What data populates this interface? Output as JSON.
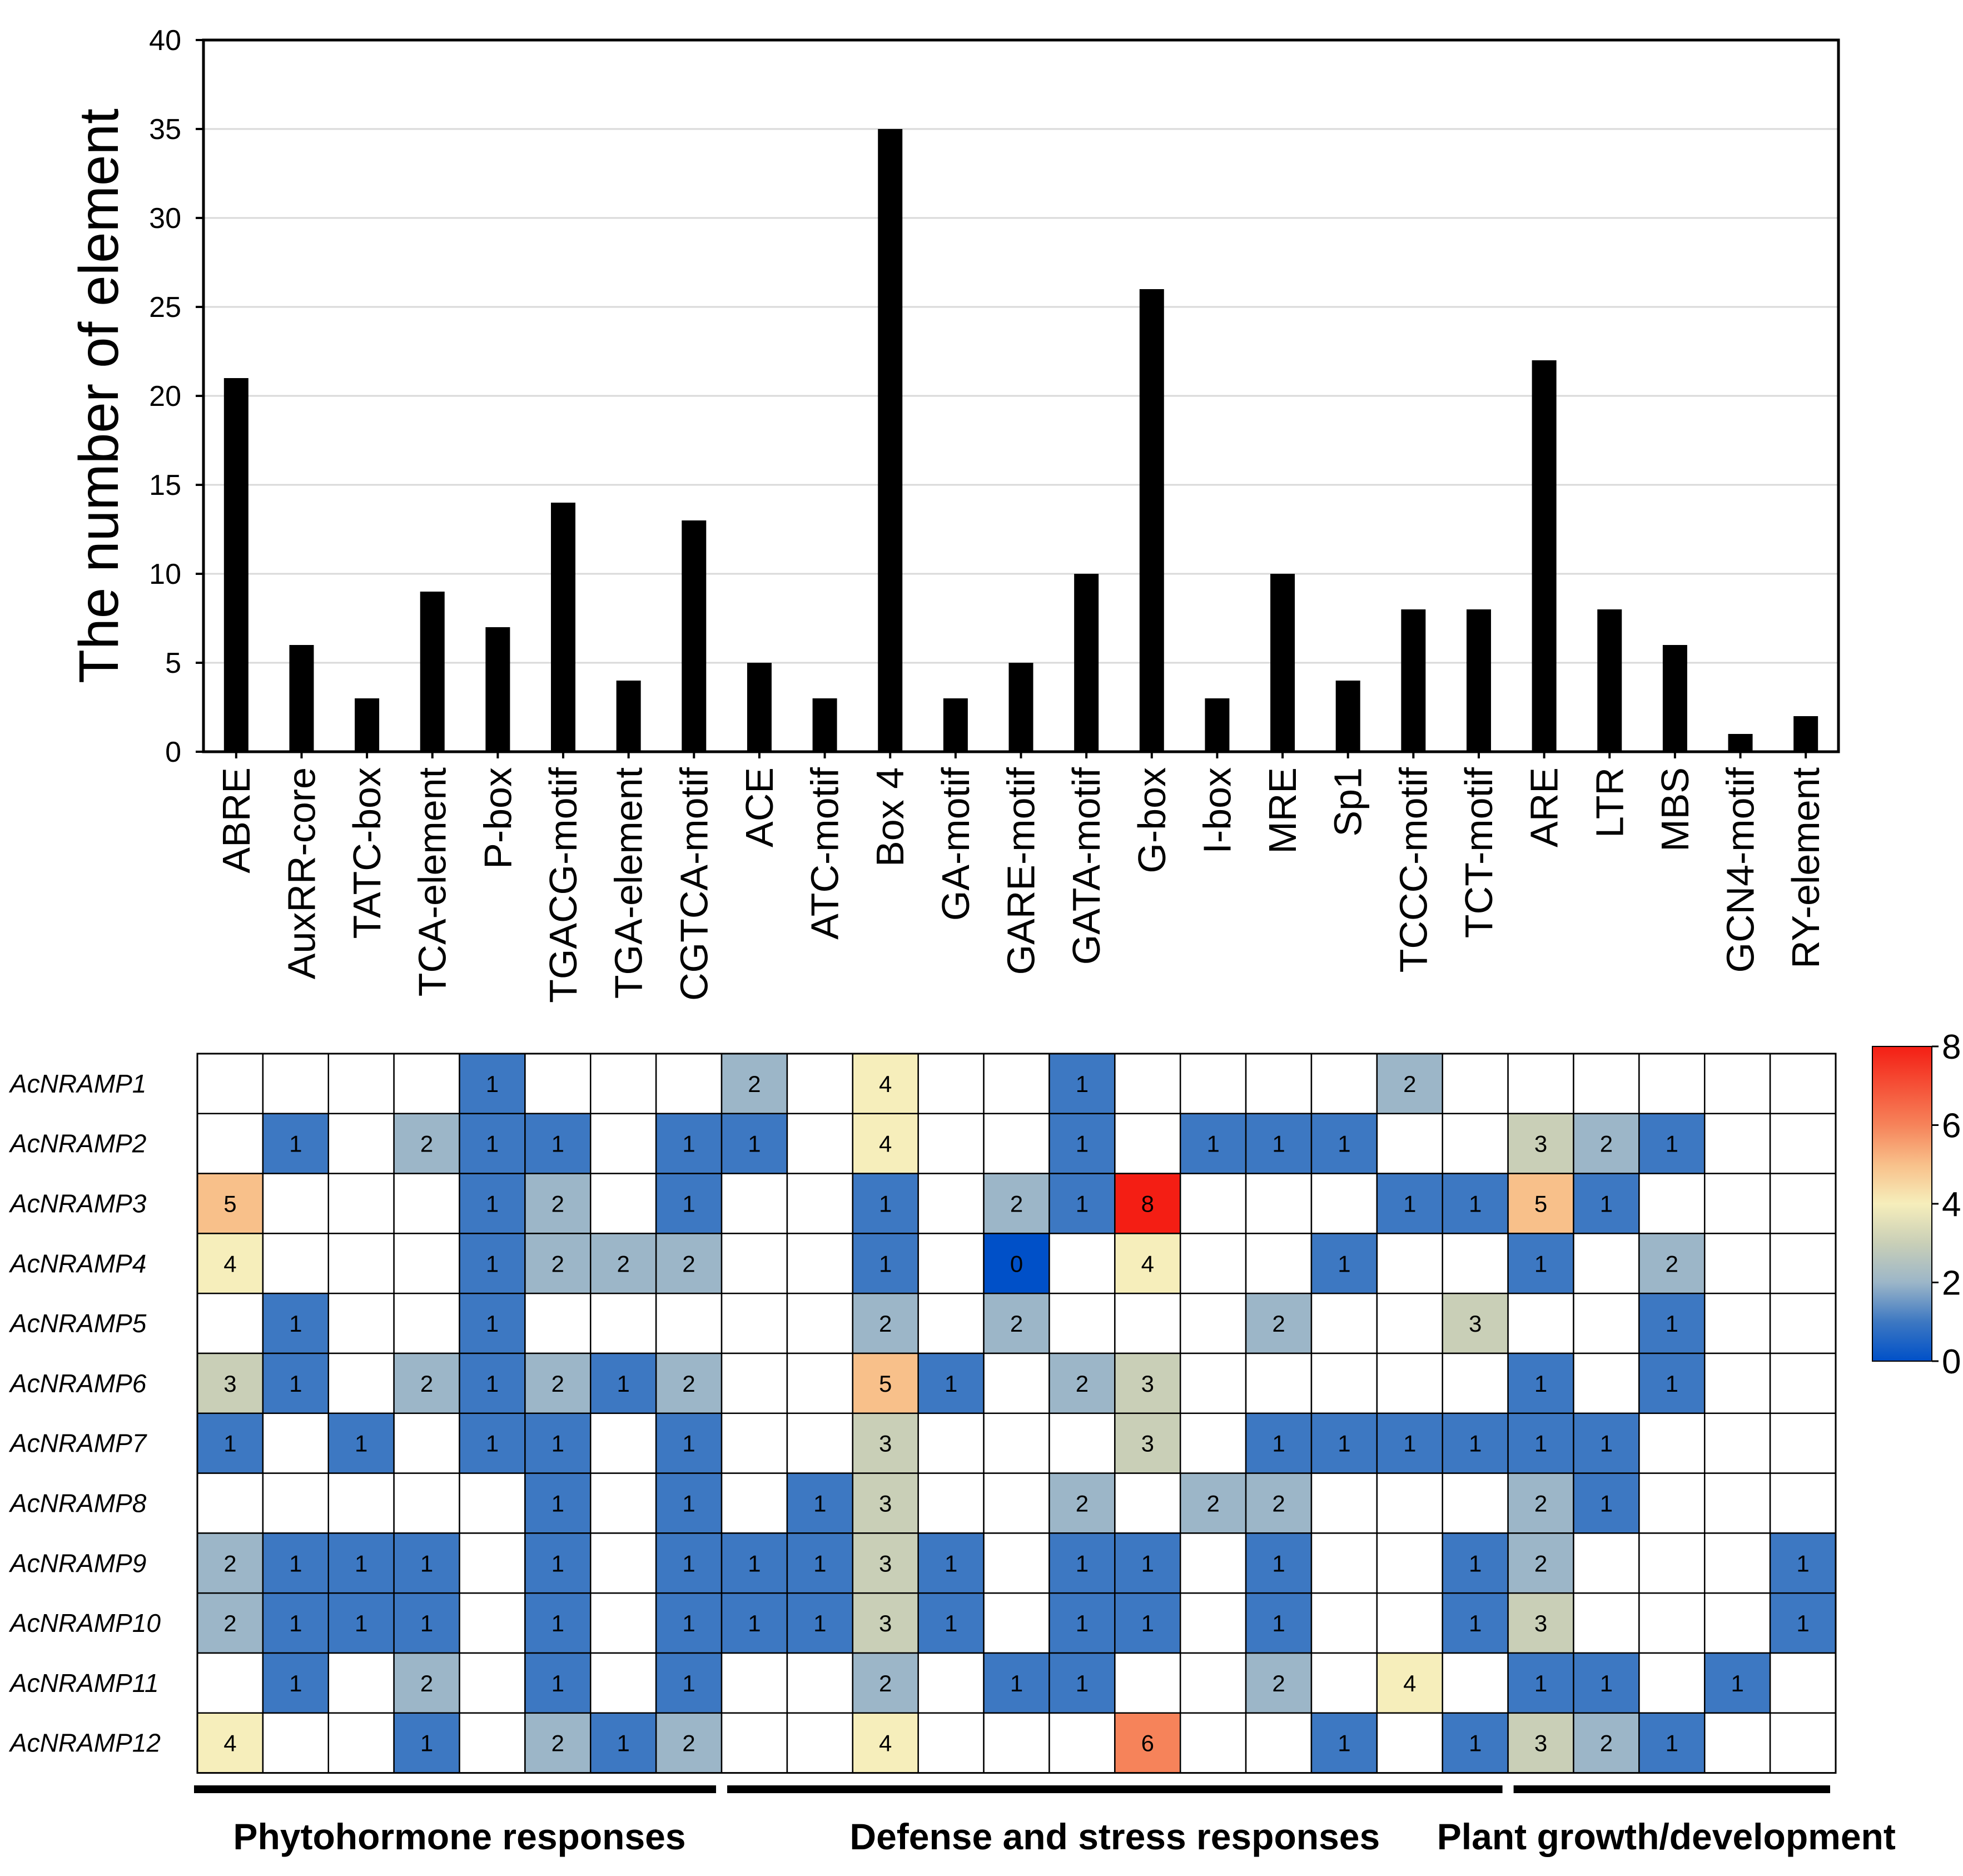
{
  "chart_data": [
    {
      "type": "bar",
      "ylabel": "The number of element",
      "xlabel": "",
      "ylim": [
        0,
        40
      ],
      "yticks": [
        0,
        5,
        10,
        15,
        20,
        25,
        30,
        35,
        40
      ],
      "grid": true,
      "categories": [
        "ABRE",
        "AuxRR-core",
        "TATC-box",
        "TCA-element",
        "P-box",
        "TGACG-motif",
        "TGA-element",
        "CGTCA-motif",
        "ACE",
        "ATC-motif",
        "Box 4",
        "GA-motif",
        "GARE-motif",
        "GATA-motif",
        "G-box",
        "I-box",
        "MRE",
        "Sp1",
        "TCCC-motif",
        "TCT-motif",
        "ARE",
        "LTR",
        "MBS",
        "GCN4-motif",
        "RY-element"
      ],
      "values": [
        21,
        6,
        3,
        9,
        7,
        14,
        4,
        13,
        5,
        3,
        35,
        3,
        5,
        10,
        26,
        3,
        10,
        4,
        8,
        8,
        22,
        8,
        6,
        1,
        2
      ],
      "bar_color": "#000000"
    },
    {
      "type": "heatmap",
      "rows": [
        "AcNRAMP1",
        "AcNRAMP2",
        "AcNRAMP3",
        "AcNRAMP4",
        "AcNRAMP5",
        "AcNRAMP6",
        "AcNRAMP7",
        "AcNRAMP8",
        "AcNRAMP9",
        "AcNRAMP10",
        "AcNRAMP11",
        "AcNRAMP12"
      ],
      "columns": [
        "ABRE",
        "AuxRR-core",
        "TATC-box",
        "TCA-element",
        "P-box",
        "TGACG-motif",
        "TGA-element",
        "CGTCA-motif",
        "ACE",
        "ATC-motif",
        "Box 4",
        "GA-motif",
        "GARE-motif",
        "GATA-motif",
        "G-box",
        "I-box",
        "MRE",
        "Sp1",
        "TCCC-motif",
        "TCT-motif",
        "ARE",
        "LTR",
        "MBS",
        "GCN4-motif",
        "RY-element"
      ],
      "values": [
        [
          null,
          null,
          null,
          null,
          1,
          null,
          null,
          null,
          2,
          null,
          4,
          null,
          null,
          1,
          null,
          null,
          null,
          null,
          2,
          null,
          null,
          null,
          null,
          null,
          null
        ],
        [
          null,
          1,
          null,
          2,
          1,
          1,
          null,
          1,
          1,
          null,
          4,
          null,
          null,
          1,
          null,
          1,
          1,
          1,
          null,
          null,
          3,
          2,
          1,
          null,
          null
        ],
        [
          5,
          null,
          null,
          null,
          1,
          2,
          null,
          1,
          null,
          null,
          1,
          null,
          2,
          1,
          8,
          null,
          null,
          null,
          1,
          1,
          5,
          1,
          null,
          null,
          null
        ],
        [
          4,
          null,
          null,
          null,
          1,
          2,
          2,
          2,
          null,
          null,
          1,
          null,
          0,
          null,
          4,
          null,
          null,
          1,
          null,
          null,
          1,
          null,
          2,
          null,
          null
        ],
        [
          null,
          1,
          null,
          null,
          1,
          null,
          null,
          null,
          null,
          null,
          2,
          null,
          2,
          null,
          null,
          null,
          2,
          null,
          null,
          3,
          null,
          null,
          1,
          null,
          null
        ],
        [
          3,
          1,
          null,
          2,
          1,
          2,
          1,
          2,
          null,
          null,
          5,
          1,
          null,
          2,
          3,
          null,
          null,
          null,
          null,
          null,
          1,
          null,
          1,
          null,
          null
        ],
        [
          1,
          null,
          1,
          null,
          1,
          1,
          null,
          1,
          null,
          null,
          3,
          null,
          null,
          null,
          3,
          null,
          1,
          1,
          1,
          1,
          1,
          1,
          null,
          null,
          null
        ],
        [
          null,
          null,
          null,
          null,
          null,
          1,
          null,
          1,
          null,
          1,
          3,
          null,
          null,
          2,
          null,
          2,
          2,
          null,
          null,
          null,
          2,
          1,
          null,
          null,
          null
        ],
        [
          2,
          1,
          1,
          1,
          null,
          1,
          null,
          1,
          1,
          1,
          3,
          1,
          null,
          1,
          1,
          null,
          1,
          null,
          null,
          1,
          2,
          null,
          null,
          null,
          1
        ],
        [
          2,
          1,
          1,
          1,
          null,
          1,
          null,
          1,
          1,
          1,
          3,
          1,
          null,
          1,
          1,
          null,
          1,
          null,
          null,
          1,
          3,
          null,
          null,
          null,
          1
        ],
        [
          null,
          1,
          null,
          2,
          null,
          1,
          null,
          1,
          null,
          null,
          2,
          null,
          1,
          1,
          null,
          null,
          2,
          null,
          4,
          null,
          1,
          1,
          null,
          1,
          null
        ],
        [
          4,
          null,
          null,
          1,
          null,
          2,
          1,
          2,
          null,
          null,
          4,
          null,
          null,
          null,
          6,
          null,
          null,
          1,
          null,
          1,
          3,
          2,
          1,
          null,
          null
        ]
      ],
      "colorbar": {
        "min": 0,
        "max": 8,
        "ticks": [
          0,
          2,
          4,
          6,
          8
        ]
      },
      "colors": {
        "low": "#0050c8",
        "one": "#3d78c2",
        "two": "#9cb6c8",
        "three": "#c9cfb7",
        "four": "#f6eebb",
        "five": "#f8c08a",
        "six": "#f6835a",
        "high": "#f41e14"
      },
      "groups": [
        {
          "label": "Phytohormone responses",
          "start": 0,
          "end": 7
        },
        {
          "label": "Defense and stress responses",
          "start": 8,
          "end": 19
        },
        {
          "label": "Plant growth/development",
          "start": 20,
          "end": 24
        }
      ]
    }
  ]
}
